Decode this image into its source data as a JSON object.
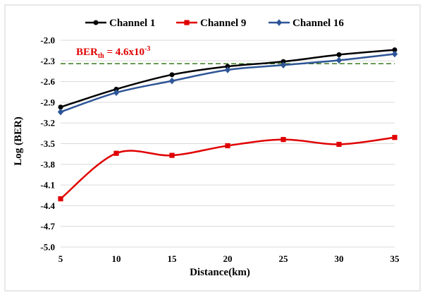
{
  "chart_data": {
    "type": "line",
    "x": [
      5,
      10,
      15,
      20,
      25,
      30,
      35
    ],
    "series": [
      {
        "name": "Channel 1",
        "color": "#000000",
        "marker": "circle",
        "values": [
          -2.97,
          -2.71,
          -2.5,
          -2.38,
          -2.31,
          -2.21,
          -2.14
        ]
      },
      {
        "name": "Channel 9",
        "color": "#e00000",
        "marker": "square",
        "values": [
          -4.3,
          -3.64,
          -3.67,
          -3.53,
          -3.44,
          -3.51,
          -3.41
        ]
      },
      {
        "name": "Channel 16",
        "color": "#2e5597",
        "marker": "diamond",
        "values": [
          -3.04,
          -2.76,
          -2.59,
          -2.43,
          -2.36,
          -2.29,
          -2.2
        ]
      }
    ],
    "xlabel": "Distance(km)",
    "ylabel": "Log (BER)",
    "xlim": [
      5,
      35
    ],
    "ylim": [
      -5.0,
      -2.0
    ],
    "xticks": [
      "5",
      "10",
      "15",
      "20",
      "25",
      "30",
      "35"
    ],
    "yticks": [
      "-2.0",
      "-2.3",
      "-2.6",
      "-2.9",
      "-3.2",
      "-3.5",
      "-3.8",
      "-4.1",
      "-4.4",
      "-4.7",
      "-5.0"
    ],
    "threshold": {
      "value": -2.34,
      "color": "#3a7a1e",
      "label_main": "BER",
      "label_sub": "th",
      "label_eq": " = 4.6x10",
      "label_sup": "-3"
    },
    "grid": "horizontal",
    "legend": "top"
  }
}
